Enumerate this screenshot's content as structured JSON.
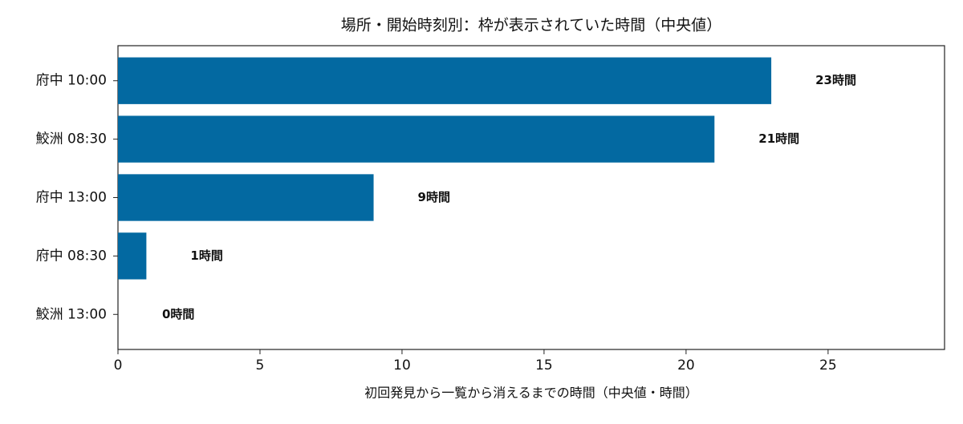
{
  "chart_data": {
    "type": "barh",
    "title": "場所・開始時刻別：枠が表示されていた時間（中央値）",
    "x_label": "初回発見から一覧から消えるまでの時間（中央値・時間）",
    "categories": [
      "府中 10:00",
      "鮫洲 08:30",
      "府中 13:00",
      "府中 08:30",
      "鮫洲 13:00"
    ],
    "values": [
      23,
      21,
      9,
      1,
      0
    ],
    "value_labels": [
      "23時間",
      "21時間",
      "9時間",
      "1時間",
      "0時間"
    ],
    "color": "#0369a1",
    "xlim": [
      0,
      29.1
    ],
    "xticks": [
      0,
      5,
      10,
      15,
      20,
      25
    ]
  }
}
